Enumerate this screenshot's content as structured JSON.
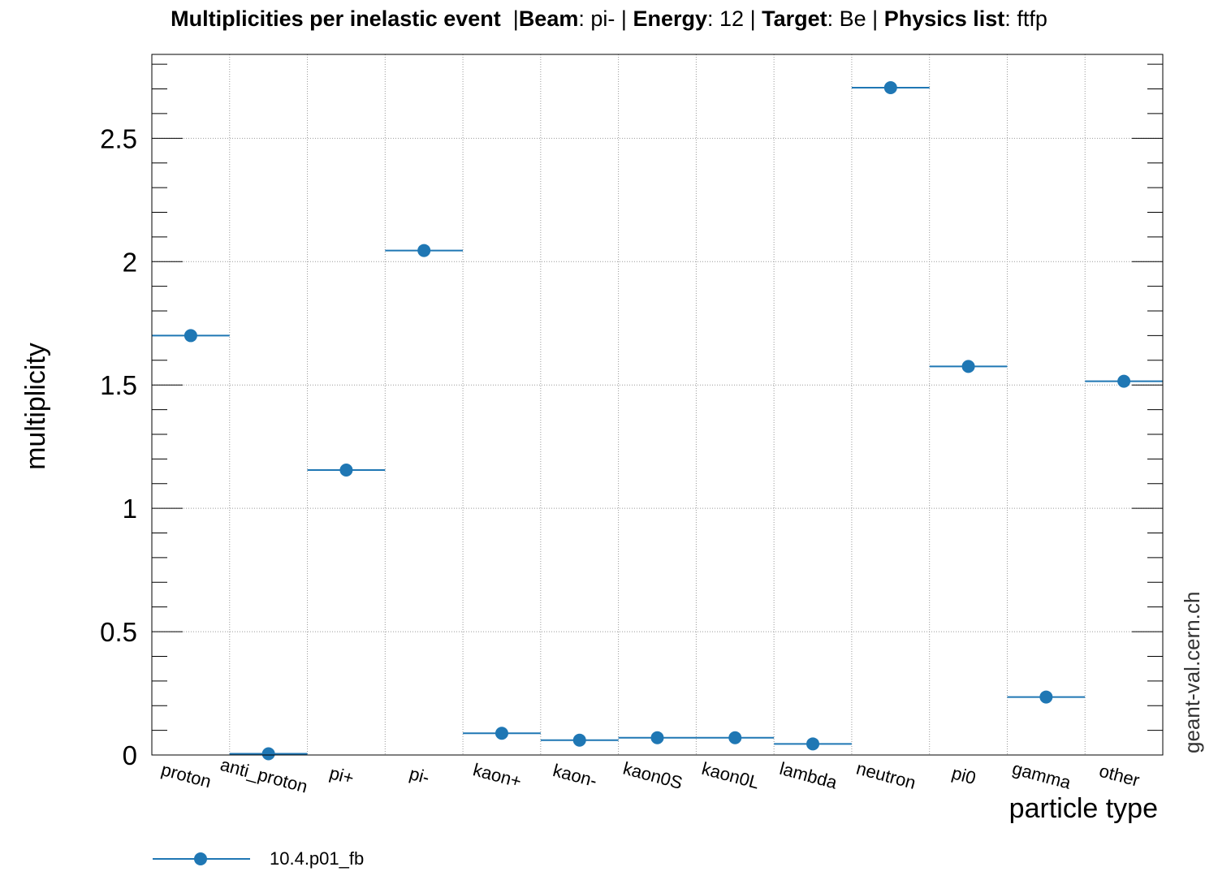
{
  "title": {
    "main": "Multiplicities per inelastic event",
    "sep1": "|",
    "beam_key": "Beam",
    "beam_value": "pi-",
    "sep2": "|",
    "energy_key": "Energy",
    "energy_value": "12",
    "sep3": "|",
    "target_key": "Target",
    "target_value": "Be",
    "sep4": "|",
    "physics_key": "Physics list",
    "physics_value": "ftfp"
  },
  "watermark": "geant-val.cern.ch",
  "colors": {
    "series": "#1f77b4",
    "grid": "#999999",
    "axis": "#000000"
  },
  "chart_data": {
    "type": "scatter",
    "xlabel": "particle type",
    "ylabel": "multiplicity",
    "categories": [
      "proton",
      "anti_proton",
      "pi+",
      "pi-",
      "kaon+",
      "kaon-",
      "kaon0S",
      "kaon0L",
      "lambda",
      "neutron",
      "pi0",
      "gamma",
      "other"
    ],
    "ylim": [
      0,
      2.84
    ],
    "yticks": [
      0,
      0.5,
      1,
      1.5,
      2,
      2.5
    ],
    "ytick_labels": [
      "0",
      "0.5",
      "1",
      "1.5",
      "2",
      "2.5"
    ],
    "grid": true,
    "legend_position": "bottom-left",
    "series": [
      {
        "name": "10.4.p01_fb",
        "values": [
          1.7,
          0.005,
          1.155,
          2.045,
          0.088,
          0.06,
          0.07,
          0.07,
          0.045,
          2.705,
          1.575,
          0.235,
          1.515
        ]
      }
    ]
  }
}
